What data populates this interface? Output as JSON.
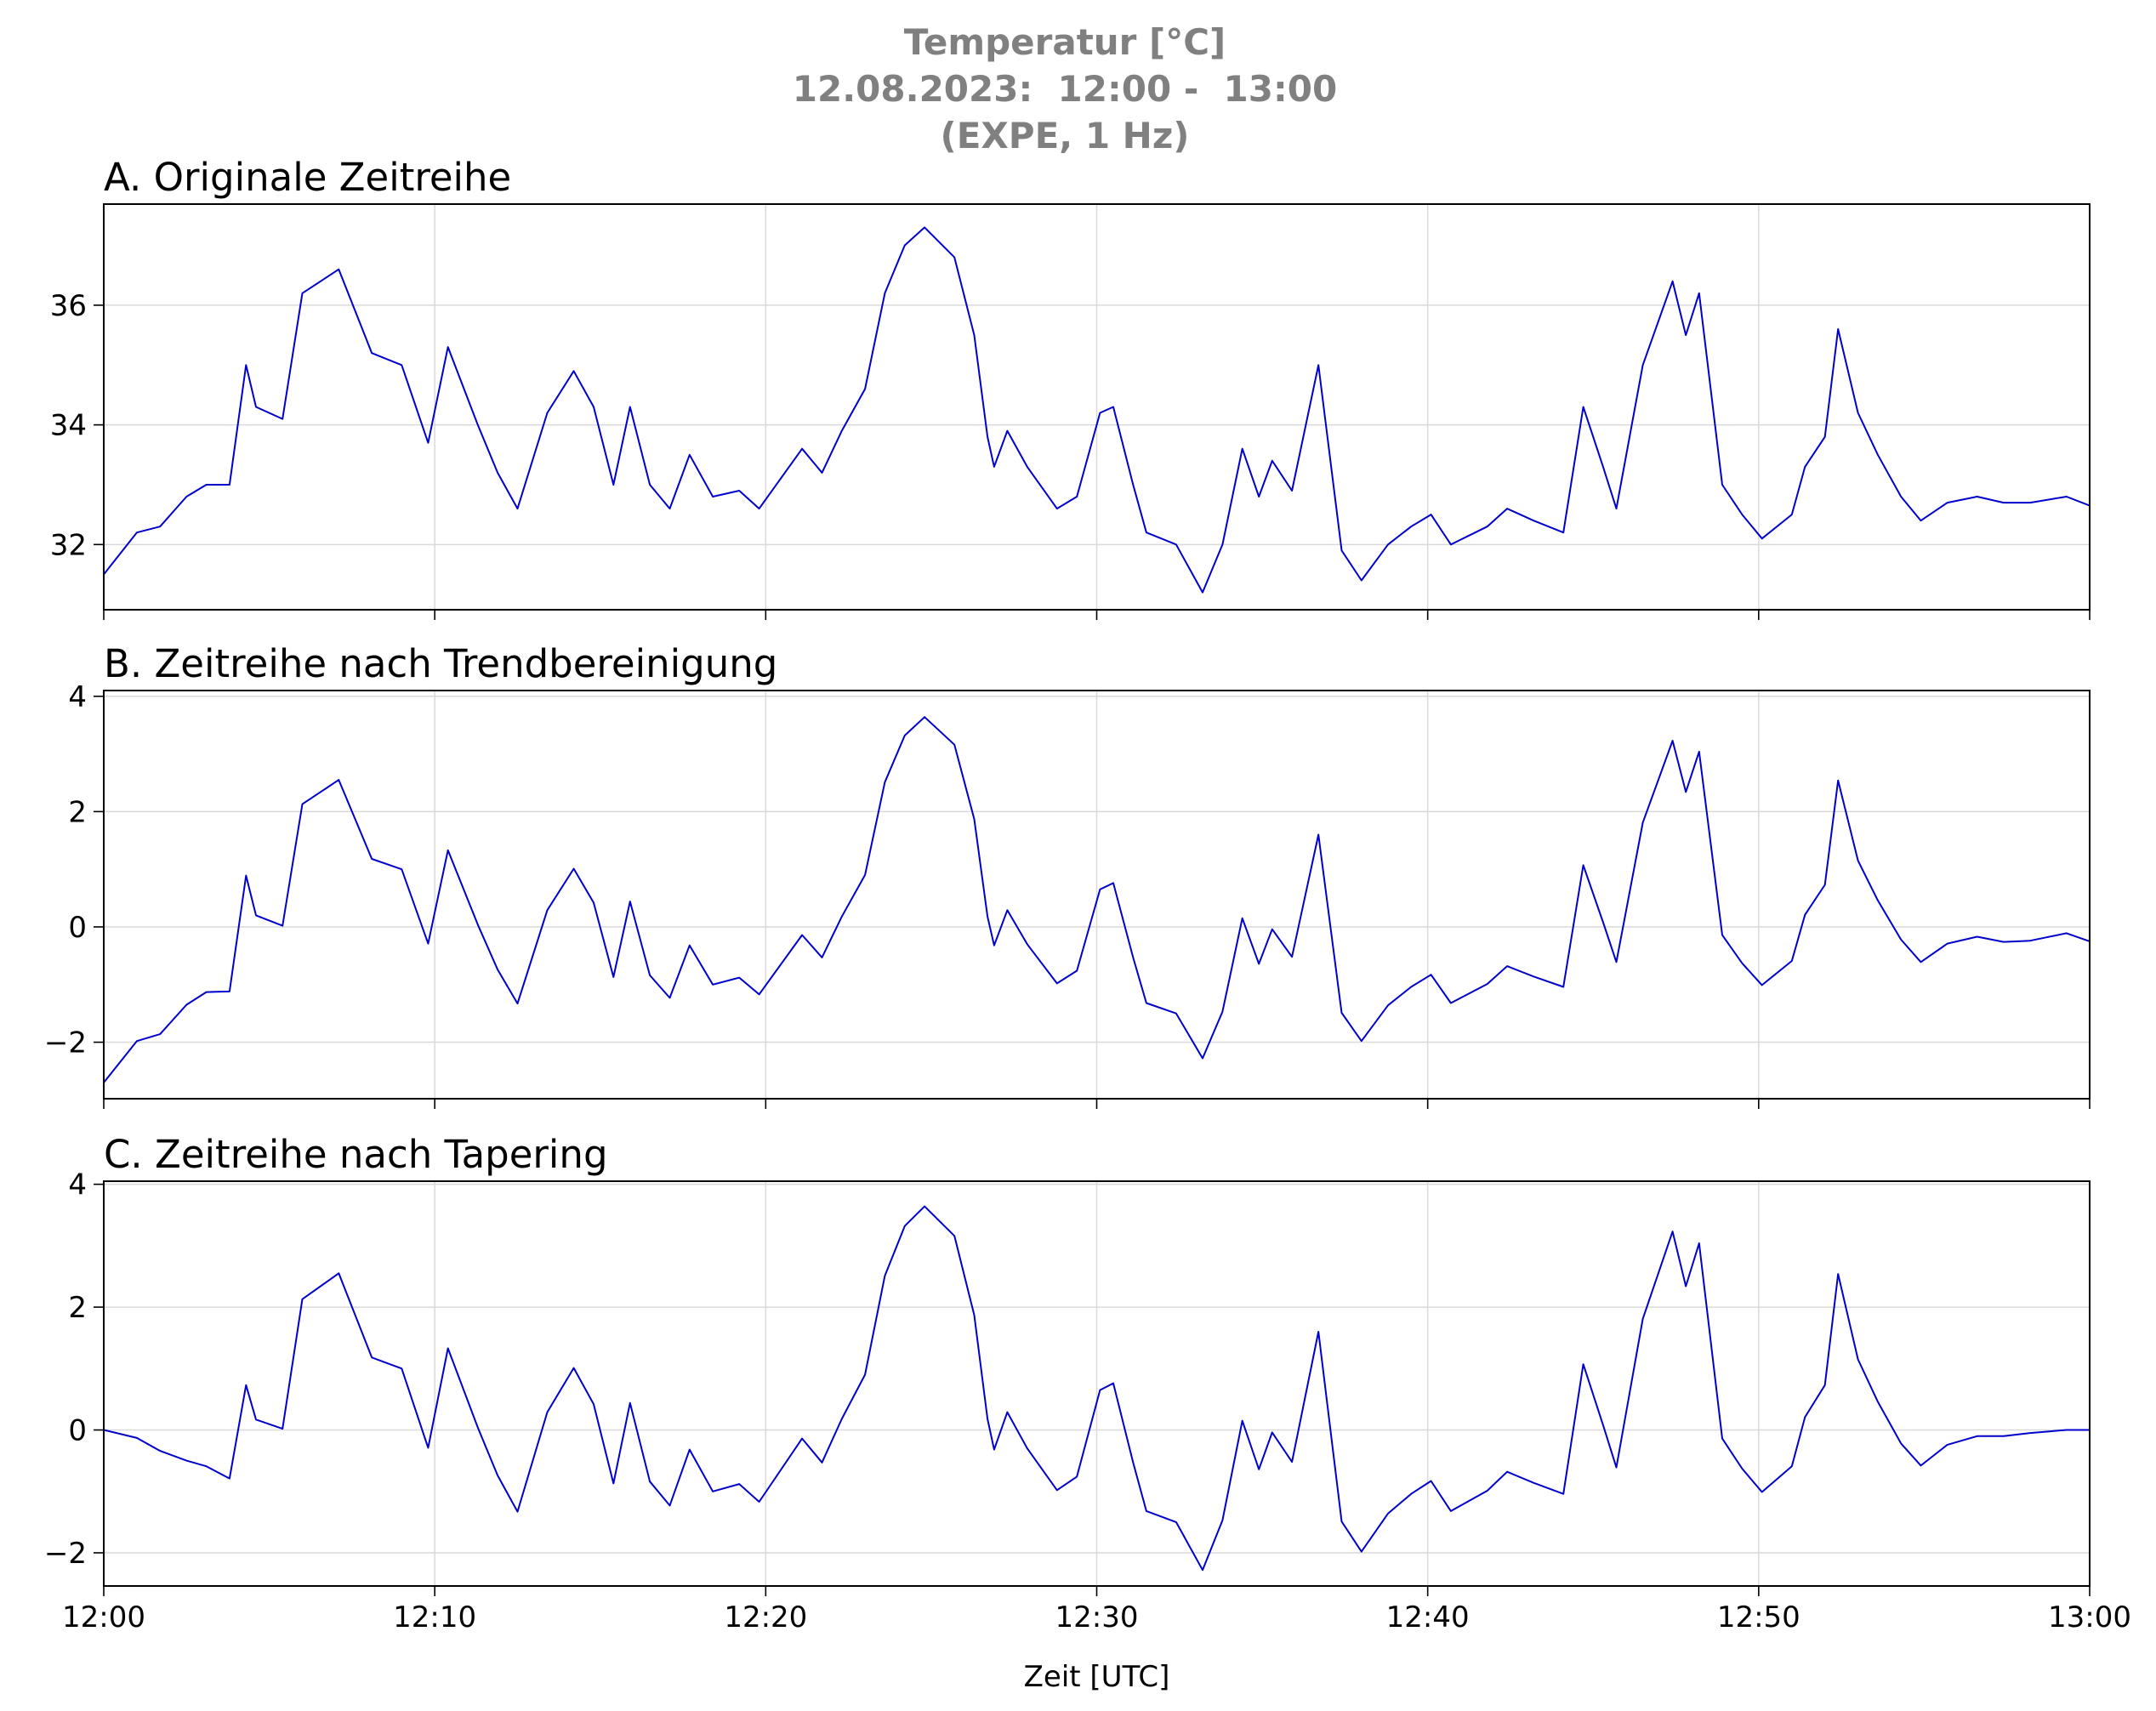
{
  "title_lines": [
    "Temperatur [°C]",
    "12.08.2023:  12:00 -  13:00",
    "(EXPE, 1 Hz)"
  ],
  "chart_data": [
    {
      "type": "line",
      "title": "A. Originale Zeitreihe",
      "color": "#0000cc",
      "grid": true,
      "x": [
        0,
        1.0,
        1.7,
        2.5,
        3.1,
        3.8,
        4.3,
        4.6,
        5.4,
        6.0,
        7.1,
        8.1,
        9.0,
        9.8,
        10.4,
        11.3,
        11.9,
        12.5,
        13.4,
        14.2,
        14.8,
        15.4,
        15.9,
        16.5,
        17.1,
        17.7,
        18.4,
        19.2,
        19.8,
        21.1,
        21.7,
        22.3,
        23.0,
        23.6,
        24.2,
        24.8,
        25.7,
        26.3,
        26.7,
        26.9,
        27.3,
        27.9,
        28.8,
        29.4,
        30.1,
        30.5,
        31.1,
        31.5,
        32.4,
        33.2,
        33.8,
        34.4,
        34.9,
        35.3,
        35.9,
        36.7,
        37.4,
        38.0,
        38.8,
        39.5,
        40.1,
        40.7,
        41.8,
        42.4,
        43.2,
        44.1,
        44.7,
        45.3,
        45.7,
        46.5,
        47.4,
        47.8,
        48.2,
        48.9,
        49.5,
        50.1,
        51.0,
        51.4,
        52.0,
        52.4,
        53.0,
        53.6,
        54.3,
        54.9,
        55.7,
        56.6,
        57.4,
        58.2,
        59.3,
        60
      ],
      "values": [
        31.5,
        32.2,
        32.3,
        32.8,
        33.0,
        33.0,
        35.0,
        34.3,
        34.1,
        36.2,
        36.6,
        35.2,
        35.0,
        33.7,
        35.3,
        34.0,
        33.2,
        32.6,
        34.2,
        34.9,
        34.3,
        33.0,
        34.3,
        33.0,
        32.6,
        33.5,
        32.8,
        32.9,
        32.6,
        33.6,
        33.2,
        33.9,
        34.6,
        36.2,
        37.0,
        37.3,
        36.8,
        35.5,
        33.8,
        33.3,
        33.9,
        33.3,
        32.6,
        32.8,
        34.2,
        34.3,
        33.0,
        32.2,
        32.0,
        31.2,
        32.0,
        33.6,
        32.8,
        33.4,
        32.9,
        35.0,
        31.9,
        31.4,
        32.0,
        32.3,
        32.5,
        32.0,
        32.3,
        32.6,
        32.4,
        32.2,
        34.3,
        33.3,
        32.6,
        35.0,
        36.4,
        35.5,
        36.2,
        33.0,
        32.5,
        32.1,
        32.5,
        33.3,
        33.8,
        35.6,
        34.2,
        33.5,
        32.8,
        32.4,
        32.7,
        32.8,
        32.7,
        32.7,
        32.8,
        32.65
      ],
      "xlim": [
        0,
        60
      ],
      "xticks": [
        0,
        10,
        20,
        30,
        40,
        50,
        60
      ],
      "ylim": [
        30.91,
        37.69
      ],
      "yticks": [
        32,
        34,
        36
      ]
    },
    {
      "type": "line",
      "title": "B. Zeitreihe nach Trendbereinigung",
      "color": "#0000cc",
      "grid": true,
      "x": [
        0,
        1.0,
        1.7,
        2.5,
        3.1,
        3.8,
        4.3,
        4.6,
        5.4,
        6.0,
        7.1,
        8.1,
        9.0,
        9.8,
        10.4,
        11.3,
        11.9,
        12.5,
        13.4,
        14.2,
        14.8,
        15.4,
        15.9,
        16.5,
        17.1,
        17.7,
        18.4,
        19.2,
        19.8,
        21.1,
        21.7,
        22.3,
        23.0,
        23.6,
        24.2,
        24.8,
        25.7,
        26.3,
        26.7,
        26.9,
        27.3,
        27.9,
        28.8,
        29.4,
        30.1,
        30.5,
        31.1,
        31.5,
        32.4,
        33.2,
        33.8,
        34.4,
        34.9,
        35.3,
        35.9,
        36.7,
        37.4,
        38.0,
        38.8,
        39.5,
        40.1,
        40.7,
        41.8,
        42.4,
        43.2,
        44.1,
        44.7,
        45.3,
        45.7,
        46.5,
        47.4,
        47.8,
        48.2,
        48.9,
        49.5,
        50.1,
        51.0,
        51.4,
        52.0,
        52.4,
        53.0,
        53.6,
        54.3,
        54.9,
        55.7,
        56.6,
        57.4,
        58.2,
        59.3,
        60
      ],
      "values": [
        -2.7,
        -1.98,
        -1.86,
        -1.35,
        -1.13,
        -1.12,
        0.89,
        0.2,
        0.02,
        2.13,
        2.55,
        1.18,
        1.0,
        -0.29,
        1.33,
        0.04,
        -0.74,
        -1.33,
        0.29,
        1.01,
        0.42,
        -0.87,
        0.44,
        -0.84,
        -1.23,
        -0.32,
        -1.0,
        -0.88,
        -1.17,
        -0.14,
        -0.53,
        0.18,
        0.9,
        2.51,
        3.32,
        3.64,
        3.16,
        1.87,
        0.18,
        -0.32,
        0.29,
        -0.3,
        -0.98,
        -0.76,
        0.65,
        0.76,
        -0.53,
        -1.32,
        -1.5,
        -2.28,
        -1.47,
        0.15,
        -0.64,
        -0.04,
        -0.52,
        1.6,
        -1.49,
        -1.98,
        -1.36,
        -1.04,
        -0.83,
        -1.32,
        -0.99,
        -0.68,
        -0.86,
        -1.04,
        1.07,
        0.08,
        -0.61,
        1.81,
        3.23,
        2.34,
        3.04,
        -0.14,
        -0.63,
        -1.01,
        -0.59,
        0.21,
        0.73,
        2.54,
        1.15,
        0.46,
        -0.22,
        -0.61,
        -0.29,
        -0.17,
        -0.26,
        -0.24,
        -0.11,
        -0.25
      ],
      "xlim": [
        0,
        60
      ],
      "xticks": [
        0,
        10,
        20,
        30,
        40,
        50,
        60
      ],
      "ylim": [
        -2.98,
        4.1
      ],
      "yticks": [
        {
          "value": -2,
          "label": "−2"
        },
        0,
        2,
        4
      ]
    },
    {
      "type": "line",
      "title": "C. Zeitreihe nach Tapering",
      "color": "#0000cc",
      "grid": true,
      "xlabel": "Zeit [UTC]",
      "x": [
        0,
        1.0,
        1.7,
        2.5,
        3.1,
        3.8,
        4.3,
        4.6,
        5.4,
        6.0,
        7.1,
        8.1,
        9.0,
        9.8,
        10.4,
        11.3,
        11.9,
        12.5,
        13.4,
        14.2,
        14.8,
        15.4,
        15.9,
        16.5,
        17.1,
        17.7,
        18.4,
        19.2,
        19.8,
        21.1,
        21.7,
        22.3,
        23.0,
        23.6,
        24.2,
        24.8,
        25.7,
        26.3,
        26.7,
        26.9,
        27.3,
        27.9,
        28.8,
        29.4,
        30.1,
        30.5,
        31.1,
        31.5,
        32.4,
        33.2,
        33.8,
        34.4,
        34.9,
        35.3,
        35.9,
        36.7,
        37.4,
        38.0,
        38.8,
        39.5,
        40.1,
        40.7,
        41.8,
        42.4,
        43.2,
        44.1,
        44.7,
        45.3,
        45.7,
        46.5,
        47.4,
        47.8,
        48.2,
        48.9,
        49.5,
        50.1,
        51.0,
        51.4,
        52.0,
        52.4,
        53.0,
        53.6,
        54.3,
        54.9,
        55.7,
        56.6,
        57.4,
        58.2,
        59.3,
        60
      ],
      "values": [
        0,
        -0.13,
        -0.34,
        -0.5,
        -0.59,
        -0.79,
        0.73,
        0.17,
        0.02,
        2.13,
        2.55,
        1.18,
        1.0,
        -0.29,
        1.33,
        0.04,
        -0.74,
        -1.33,
        0.29,
        1.01,
        0.42,
        -0.87,
        0.44,
        -0.84,
        -1.23,
        -0.32,
        -1.0,
        -0.88,
        -1.17,
        -0.14,
        -0.53,
        0.18,
        0.9,
        2.51,
        3.32,
        3.64,
        3.16,
        1.87,
        0.18,
        -0.32,
        0.29,
        -0.3,
        -0.98,
        -0.76,
        0.65,
        0.76,
        -0.53,
        -1.32,
        -1.5,
        -2.28,
        -1.47,
        0.15,
        -0.64,
        -0.04,
        -0.52,
        1.6,
        -1.49,
        -1.98,
        -1.36,
        -1.04,
        -0.83,
        -1.32,
        -0.99,
        -0.68,
        -0.86,
        -1.04,
        1.07,
        0.08,
        -0.61,
        1.81,
        3.23,
        2.34,
        3.04,
        -0.14,
        -0.63,
        -1.01,
        -0.59,
        0.21,
        0.73,
        2.54,
        1.15,
        0.46,
        -0.22,
        -0.58,
        -0.24,
        -0.1,
        -0.1,
        -0.05,
        0,
        0
      ],
      "xlim": [
        0,
        60
      ],
      "xticks": [
        {
          "value": 0,
          "label": "12:00"
        },
        {
          "value": 10,
          "label": "12:10"
        },
        {
          "value": 20,
          "label": "12:20"
        },
        {
          "value": 30,
          "label": "12:30"
        },
        {
          "value": 40,
          "label": "12:40"
        },
        {
          "value": 50,
          "label": "12:50"
        },
        {
          "value": 60,
          "label": "13:00"
        }
      ],
      "ylim": [
        -2.54,
        4.05
      ],
      "yticks": [
        {
          "value": -2,
          "label": "−2"
        },
        0,
        2,
        4
      ]
    }
  ]
}
